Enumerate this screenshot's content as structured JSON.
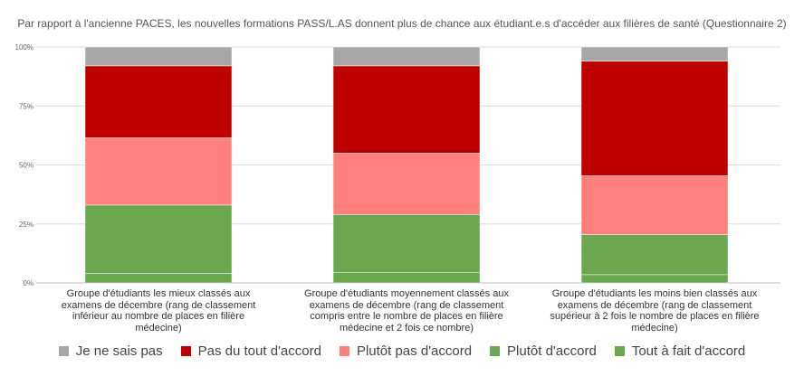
{
  "chart_data": {
    "type": "bar",
    "stacked": true,
    "normalized": true,
    "title": "Par rapport à l'ancienne PACES, les nouvelles formations PASS/L.AS donnent plus de chance aux étudiant.e.s d'accéder aux filières de santé (Questionnaire 2)",
    "xlabel": "",
    "ylabel": "",
    "ylim": [
      0,
      100
    ],
    "y_ticks": [
      0,
      25,
      50,
      75,
      100
    ],
    "y_tick_labels": [
      "0%",
      "25%",
      "50%",
      "75%",
      "100%"
    ],
    "grid": true,
    "legend_position": "bottom",
    "categories": [
      "Groupe d'étudiants les mieux classés aux examens de décembre (rang de classement inférieur au nombre de places en filière médecine)",
      "Groupe d'étudiants moyennement classés aux examens de décembre (rang de classement compris entre le nombre de places en filière médecine et 2 fois ce nombre)",
      "Groupe d'étudiants les moins bien classés aux examens de décembre (rang de classement supérieur à 2 fois le nombre de places en filière médecine)"
    ],
    "series": [
      {
        "name": "Tout à fait d'accord",
        "color": "#6aa84f",
        "values": [
          4,
          4.5,
          3.5
        ]
      },
      {
        "name": "Plutôt d'accord",
        "color": "#6aa84f",
        "values": [
          29,
          24.5,
          17
        ]
      },
      {
        "name": "Plutôt pas d'accord",
        "color": "#ff7f7a",
        "values": [
          28.5,
          26,
          25
        ]
      },
      {
        "name": "Pas du tout d'accord",
        "color": "#c00000",
        "values": [
          30.5,
          37,
          48.5
        ]
      },
      {
        "name": "Je ne sais pas",
        "color": "#a6a6a6",
        "values": [
          8,
          8,
          6
        ]
      }
    ],
    "legend": [
      "Je ne sais pas",
      "Pas du tout d'accord",
      "Plutôt pas d'accord",
      "Plutôt d'accord",
      "Tout à fait d'accord"
    ]
  }
}
